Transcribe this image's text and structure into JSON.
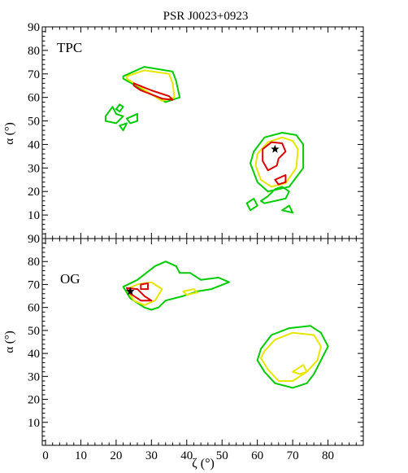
{
  "chart_data": [
    {
      "type": "contour",
      "title": "PSR J0023+0923",
      "panel_label": "TPC",
      "xlabel": "",
      "ylabel": "α (°)",
      "xlim": [
        0,
        90
      ],
      "ylim": [
        0,
        90
      ],
      "y_ticks": [
        10,
        20,
        30,
        40,
        50,
        60,
        70,
        80,
        90
      ],
      "grid": false,
      "colors": {
        "outer": "#00cc00",
        "middle": "#e6e600",
        "inner": "#dd0000",
        "marker": "#000000"
      },
      "best_fit": {
        "x": 65,
        "y": 38
      },
      "contours": [
        {
          "level": "outer",
          "points": [
            [
              22,
              69
            ],
            [
              28,
              73
            ],
            [
              36,
              71
            ],
            [
              37,
              67
            ],
            [
              38,
              60
            ],
            [
              34,
              58
            ],
            [
              22,
              68
            ]
          ]
        },
        {
          "level": "middle",
          "points": [
            [
              23,
              69
            ],
            [
              28,
              71.5
            ],
            [
              35,
              70
            ],
            [
              36,
              66
            ],
            [
              36.5,
              60
            ],
            [
              33,
              58.5
            ],
            [
              23,
              68
            ]
          ]
        },
        {
          "level": "inner",
          "points": [
            [
              25,
              66
            ],
            [
              30,
              63
            ],
            [
              35,
              60.5
            ],
            [
              36,
              59
            ],
            [
              33,
              59.5
            ],
            [
              27,
              63
            ],
            [
              25,
              65
            ]
          ]
        },
        {
          "level": "outer",
          "points": [
            [
              17,
              52
            ],
            [
              19,
              56
            ],
            [
              20,
              53
            ],
            [
              22,
              52
            ],
            [
              20,
              49
            ],
            [
              17,
              50
            ]
          ]
        },
        {
          "level": "outer",
          "points": [
            [
              20,
              55
            ],
            [
              21,
              57
            ],
            [
              22,
              56
            ],
            [
              21,
              54
            ]
          ]
        },
        {
          "level": "outer",
          "points": [
            [
              23,
              51
            ],
            [
              26,
              53
            ],
            [
              26,
              50
            ],
            [
              24,
              49
            ]
          ]
        },
        {
          "level": "outer",
          "points": [
            [
              21,
              48
            ],
            [
              23,
              49
            ],
            [
              22,
              46
            ]
          ]
        },
        {
          "level": "outer",
          "points": [
            [
              59,
              37
            ],
            [
              62,
              43
            ],
            [
              67,
              45
            ],
            [
              71,
              44
            ],
            [
              73,
              40
            ],
            [
              73,
              30
            ],
            [
              69,
              22
            ],
            [
              63,
              20
            ],
            [
              60,
              24
            ],
            [
              58,
              32
            ]
          ]
        },
        {
          "level": "middle",
          "points": [
            [
              60,
              36
            ],
            [
              63,
              41
            ],
            [
              67,
              43
            ],
            [
              70,
              41.5
            ],
            [
              71.5,
              38
            ],
            [
              71,
              30
            ],
            [
              68,
              23.5
            ],
            [
              64,
              22
            ],
            [
              61,
              25
            ],
            [
              59.5,
              31
            ]
          ]
        },
        {
          "level": "inner",
          "points": [
            [
              61.5,
              38
            ],
            [
              64,
              41
            ],
            [
              67,
              40.5
            ],
            [
              68,
              37
            ],
            [
              66,
              34
            ],
            [
              65.5,
              31
            ],
            [
              63,
              29
            ],
            [
              61.5,
              33
            ]
          ]
        },
        {
          "level": "inner",
          "points": [
            [
              65,
              25
            ],
            [
              68,
              27
            ],
            [
              68,
              24
            ],
            [
              66,
              23
            ]
          ]
        },
        {
          "level": "outer",
          "points": [
            [
              61,
              16
            ],
            [
              63,
              18
            ],
            [
              65,
              21
            ],
            [
              67,
              22
            ],
            [
              69,
              20
            ],
            [
              68,
              17
            ],
            [
              65,
              16
            ],
            [
              62,
              15
            ]
          ]
        },
        {
          "level": "outer",
          "points": [
            [
              57,
              15
            ],
            [
              59,
              17
            ],
            [
              60,
              14
            ],
            [
              58,
              12
            ]
          ]
        },
        {
          "level": "outer",
          "points": [
            [
              67,
              12
            ],
            [
              69,
              14
            ],
            [
              70,
              11
            ]
          ]
        }
      ]
    },
    {
      "type": "contour",
      "title": "",
      "panel_label": "OG",
      "xlabel": "ζ (°)",
      "ylabel": "α (°)",
      "xlim": [
        0,
        90
      ],
      "ylim": [
        0,
        90
      ],
      "x_ticks": [
        0,
        10,
        20,
        30,
        40,
        50,
        60,
        70,
        80
      ],
      "y_ticks": [
        10,
        20,
        30,
        40,
        50,
        60,
        70,
        80,
        90
      ],
      "grid": false,
      "colors": {
        "outer": "#00cc00",
        "middle": "#e6e600",
        "inner": "#dd0000",
        "marker": "#000000"
      },
      "best_fit": {
        "x": 24,
        "y": 67
      },
      "contours": [
        {
          "level": "outer",
          "points": [
            [
              22,
              69
            ],
            [
              26,
              72
            ],
            [
              31,
              78
            ],
            [
              34,
              80
            ],
            [
              37,
              78
            ],
            [
              38,
              75
            ],
            [
              41,
              75
            ],
            [
              44,
              72
            ],
            [
              49,
              73
            ],
            [
              52,
              71
            ],
            [
              47,
              68
            ],
            [
              43,
              67
            ],
            [
              39,
              65
            ],
            [
              34,
              63
            ],
            [
              32,
              60
            ],
            [
              30,
              59
            ],
            [
              28,
              60
            ],
            [
              24,
              64
            ]
          ]
        },
        {
          "level": "middle",
          "points": [
            [
              23,
              68
            ],
            [
              26,
              70
            ],
            [
              30,
              71
            ],
            [
              33,
              68
            ],
            [
              31,
              63
            ],
            [
              28,
              61
            ],
            [
              25,
              63
            ]
          ]
        },
        {
          "level": "middle",
          "points": [
            [
              39,
              67
            ],
            [
              42,
              68
            ],
            [
              43,
              66.5
            ],
            [
              40,
              65.5
            ]
          ]
        },
        {
          "level": "inner",
          "points": [
            [
              23,
              68.5
            ],
            [
              26,
              68
            ],
            [
              28,
              65
            ],
            [
              30,
              63
            ],
            [
              27,
              63
            ],
            [
              24,
              66
            ]
          ]
        },
        {
          "level": "inner",
          "points": [
            [
              27,
              70
            ],
            [
              29,
              70.5
            ],
            [
              29,
              68
            ],
            [
              27,
              68
            ]
          ]
        },
        {
          "level": "outer",
          "points": [
            [
              61,
              42
            ],
            [
              64,
              48
            ],
            [
              69,
              51
            ],
            [
              75,
              52
            ],
            [
              78,
              49
            ],
            [
              80,
              43
            ],
            [
              78,
              37
            ],
            [
              76,
              31
            ],
            [
              74,
              27
            ],
            [
              70,
              25
            ],
            [
              65,
              27
            ],
            [
              62,
              32
            ],
            [
              60,
              37
            ]
          ]
        },
        {
          "level": "middle",
          "points": [
            [
              62,
              41
            ],
            [
              65,
              46
            ],
            [
              70,
              49
            ],
            [
              76,
              48
            ],
            [
              78,
              43
            ],
            [
              77,
              37
            ],
            [
              74,
              32
            ],
            [
              70,
              28
            ],
            [
              66,
              28
            ],
            [
              63,
              33
            ],
            [
              61,
              38
            ]
          ]
        },
        {
          "level": "middle",
          "points": [
            [
              70,
              32
            ],
            [
              73,
              35
            ],
            [
              74,
              32
            ],
            [
              72,
              31
            ]
          ]
        }
      ]
    }
  ]
}
